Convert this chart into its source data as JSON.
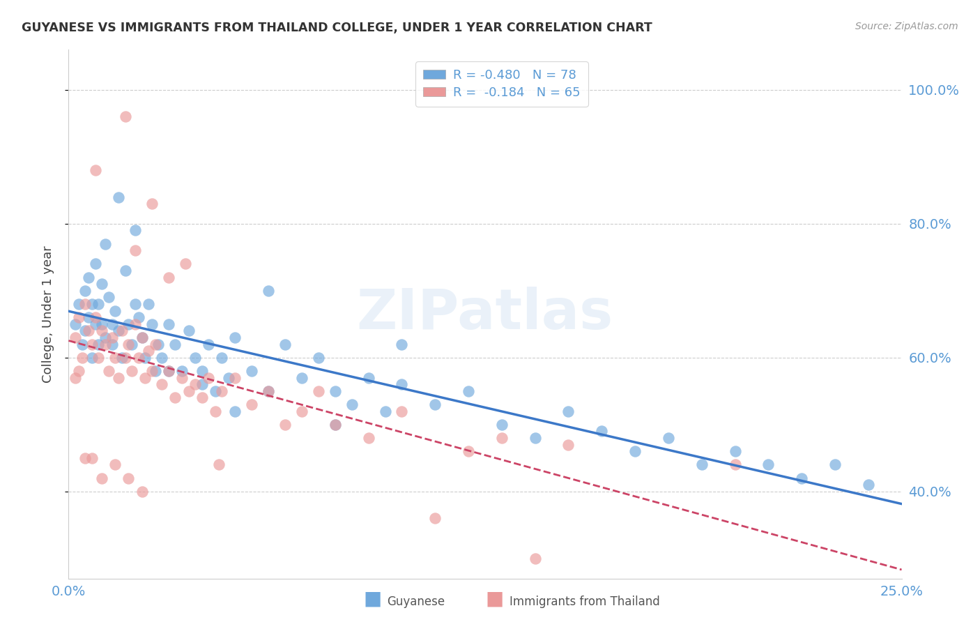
{
  "title": "GUYANESE VS IMMIGRANTS FROM THAILAND COLLEGE, UNDER 1 YEAR CORRELATION CHART",
  "source": "Source: ZipAtlas.com",
  "ylabel": "College, Under 1 year",
  "legend_blue_label": "R = -0.480   N = 78",
  "legend_pink_label": "R =  -0.184   N = 65",
  "watermark": "ZIPatlas",
  "blue_color": "#6fa8dc",
  "pink_color": "#ea9999",
  "line_blue_color": "#3c78c8",
  "line_pink_color": "#cc4466",
  "xlim": [
    0.0,
    0.25
  ],
  "ylim": [
    0.27,
    1.06
  ],
  "ytick_vals": [
    0.4,
    0.6,
    0.8,
    1.0
  ],
  "ytick_labels": [
    "40.0%",
    "60.0%",
    "80.0%",
    "100.0%"
  ],
  "xtick_vals": [
    0.0,
    0.0625,
    0.125,
    0.1875,
    0.25
  ],
  "xtick_labels": [
    "0.0%",
    "",
    "",
    "",
    "25.0%"
  ],
  "tick_color": "#5b9bd5",
  "blue_x": [
    0.002,
    0.003,
    0.004,
    0.005,
    0.005,
    0.006,
    0.006,
    0.007,
    0.007,
    0.008,
    0.008,
    0.009,
    0.009,
    0.01,
    0.01,
    0.011,
    0.011,
    0.012,
    0.013,
    0.013,
    0.014,
    0.015,
    0.016,
    0.017,
    0.018,
    0.019,
    0.02,
    0.021,
    0.022,
    0.023,
    0.024,
    0.025,
    0.026,
    0.027,
    0.028,
    0.03,
    0.032,
    0.034,
    0.036,
    0.038,
    0.04,
    0.042,
    0.044,
    0.046,
    0.048,
    0.05,
    0.055,
    0.06,
    0.065,
    0.07,
    0.075,
    0.08,
    0.085,
    0.09,
    0.095,
    0.1,
    0.11,
    0.12,
    0.13,
    0.14,
    0.15,
    0.16,
    0.17,
    0.18,
    0.19,
    0.2,
    0.21,
    0.22,
    0.23,
    0.24,
    0.1,
    0.05,
    0.03,
    0.02,
    0.015,
    0.06,
    0.08,
    0.04
  ],
  "blue_y": [
    0.65,
    0.68,
    0.62,
    0.7,
    0.64,
    0.66,
    0.72,
    0.68,
    0.6,
    0.65,
    0.74,
    0.62,
    0.68,
    0.65,
    0.71,
    0.63,
    0.77,
    0.69,
    0.65,
    0.62,
    0.67,
    0.64,
    0.6,
    0.73,
    0.65,
    0.62,
    0.68,
    0.66,
    0.63,
    0.6,
    0.68,
    0.65,
    0.58,
    0.62,
    0.6,
    0.65,
    0.62,
    0.58,
    0.64,
    0.6,
    0.58,
    0.62,
    0.55,
    0.6,
    0.57,
    0.63,
    0.58,
    0.55,
    0.62,
    0.57,
    0.6,
    0.55,
    0.53,
    0.57,
    0.52,
    0.56,
    0.53,
    0.55,
    0.5,
    0.48,
    0.52,
    0.49,
    0.46,
    0.48,
    0.44,
    0.46,
    0.44,
    0.42,
    0.44,
    0.41,
    0.62,
    0.52,
    0.58,
    0.79,
    0.84,
    0.7,
    0.5,
    0.56
  ],
  "pink_x": [
    0.002,
    0.003,
    0.004,
    0.005,
    0.006,
    0.007,
    0.008,
    0.009,
    0.01,
    0.011,
    0.012,
    0.013,
    0.014,
    0.015,
    0.016,
    0.017,
    0.018,
    0.019,
    0.02,
    0.021,
    0.022,
    0.023,
    0.024,
    0.025,
    0.026,
    0.028,
    0.03,
    0.032,
    0.034,
    0.036,
    0.038,
    0.04,
    0.042,
    0.044,
    0.046,
    0.05,
    0.055,
    0.06,
    0.065,
    0.07,
    0.075,
    0.08,
    0.09,
    0.1,
    0.11,
    0.12,
    0.13,
    0.14,
    0.15,
    0.2,
    0.017,
    0.008,
    0.02,
    0.025,
    0.03,
    0.035,
    0.045,
    0.003,
    0.002,
    0.005,
    0.007,
    0.01,
    0.014,
    0.018,
    0.022
  ],
  "pink_y": [
    0.63,
    0.66,
    0.6,
    0.68,
    0.64,
    0.62,
    0.66,
    0.6,
    0.64,
    0.62,
    0.58,
    0.63,
    0.6,
    0.57,
    0.64,
    0.6,
    0.62,
    0.58,
    0.65,
    0.6,
    0.63,
    0.57,
    0.61,
    0.58,
    0.62,
    0.56,
    0.58,
    0.54,
    0.57,
    0.55,
    0.56,
    0.54,
    0.57,
    0.52,
    0.55,
    0.57,
    0.53,
    0.55,
    0.5,
    0.52,
    0.55,
    0.5,
    0.48,
    0.52,
    0.36,
    0.46,
    0.48,
    0.3,
    0.47,
    0.44,
    0.96,
    0.88,
    0.76,
    0.83,
    0.72,
    0.74,
    0.44,
    0.58,
    0.57,
    0.45,
    0.45,
    0.42,
    0.44,
    0.42,
    0.4
  ]
}
